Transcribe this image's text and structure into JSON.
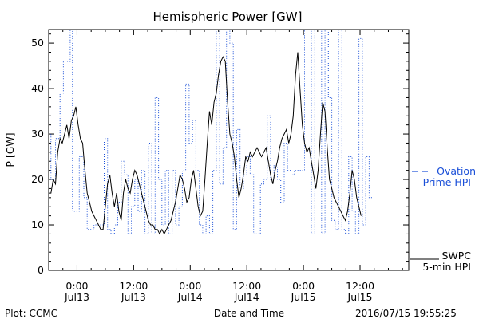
{
  "chart_data": {
    "type": "line",
    "title": "Hemispheric Power [GW]",
    "ylabel": "P [GW]",
    "xlabel": "Date and Time",
    "ylim": [
      0,
      53
    ],
    "xlim": [
      -0.25,
      2.93
    ],
    "x_unit": "days since 2016-07-13 00:00",
    "yticks": [
      0,
      10,
      20,
      30,
      40,
      50
    ],
    "xticks": [
      {
        "t": 0.0,
        "time": "0:00",
        "date": "Jul13"
      },
      {
        "t": 0.5,
        "time": "12:00",
        "date": "Jul13"
      },
      {
        "t": 1.0,
        "time": "0:00",
        "date": "Jul14"
      },
      {
        "t": 1.5,
        "time": "12:00",
        "date": "Jul14"
      },
      {
        "t": 2.0,
        "time": "0:00",
        "date": "Jul15"
      },
      {
        "t": 2.5,
        "time": "12:00",
        "date": "Jul15"
      }
    ],
    "series": [
      {
        "name": "Ovation Prime HPI",
        "color": "#1a4fd8",
        "style": "dotted-step",
        "points": [
          [
            -0.25,
            30
          ],
          [
            -0.23,
            20
          ],
          [
            -0.19,
            29
          ],
          [
            -0.15,
            39
          ],
          [
            -0.12,
            46
          ],
          [
            -0.09,
            46
          ],
          [
            -0.06,
            64
          ],
          [
            -0.04,
            13
          ],
          [
            -0.01,
            13
          ],
          [
            0.02,
            25
          ],
          [
            0.06,
            16
          ],
          [
            0.09,
            9
          ],
          [
            0.12,
            9
          ],
          [
            0.15,
            10
          ],
          [
            0.18,
            10
          ],
          [
            0.2,
            10
          ],
          [
            0.24,
            29
          ],
          [
            0.27,
            9
          ],
          [
            0.3,
            8
          ],
          [
            0.33,
            10
          ],
          [
            0.36,
            15
          ],
          [
            0.39,
            24
          ],
          [
            0.42,
            21
          ],
          [
            0.45,
            8
          ],
          [
            0.48,
            14
          ],
          [
            0.51,
            20
          ],
          [
            0.54,
            13
          ],
          [
            0.57,
            22
          ],
          [
            0.6,
            8
          ],
          [
            0.63,
            28
          ],
          [
            0.66,
            8
          ],
          [
            0.69,
            38
          ],
          [
            0.72,
            20
          ],
          [
            0.75,
            10
          ],
          [
            0.78,
            22
          ],
          [
            0.81,
            8
          ],
          [
            0.84,
            22
          ],
          [
            0.87,
            10
          ],
          [
            0.9,
            14
          ],
          [
            0.93,
            22
          ],
          [
            0.96,
            41
          ],
          [
            0.99,
            28
          ],
          [
            1.02,
            33
          ],
          [
            1.05,
            22
          ],
          [
            1.08,
            10
          ],
          [
            1.11,
            8
          ],
          [
            1.14,
            12
          ],
          [
            1.17,
            8
          ],
          [
            1.2,
            22
          ],
          [
            1.23,
            64
          ],
          [
            1.26,
            19
          ],
          [
            1.29,
            27
          ],
          [
            1.32,
            64
          ],
          [
            1.35,
            50
          ],
          [
            1.38,
            9
          ],
          [
            1.41,
            31
          ],
          [
            1.44,
            18
          ],
          [
            1.47,
            21
          ],
          [
            1.5,
            25
          ],
          [
            1.53,
            21
          ],
          [
            1.56,
            8
          ],
          [
            1.59,
            8
          ],
          [
            1.62,
            19
          ],
          [
            1.65,
            20
          ],
          [
            1.68,
            34
          ],
          [
            1.71,
            20
          ],
          [
            1.74,
            23
          ],
          [
            1.77,
            20
          ],
          [
            1.8,
            15
          ],
          [
            1.83,
            28
          ],
          [
            1.86,
            22
          ],
          [
            1.89,
            21
          ],
          [
            1.92,
            22
          ],
          [
            1.95,
            22
          ],
          [
            1.98,
            22
          ],
          [
            2.01,
            64
          ],
          [
            2.04,
            64
          ],
          [
            2.07,
            8
          ],
          [
            2.1,
            64
          ],
          [
            2.13,
            64
          ],
          [
            2.16,
            8
          ],
          [
            2.19,
            64
          ],
          [
            2.22,
            38
          ],
          [
            2.25,
            11
          ],
          [
            2.28,
            9
          ],
          [
            2.31,
            64
          ],
          [
            2.34,
            9
          ],
          [
            2.37,
            8
          ],
          [
            2.4,
            25
          ],
          [
            2.43,
            13
          ],
          [
            2.46,
            8
          ],
          [
            2.49,
            51
          ],
          [
            2.52,
            10
          ],
          [
            2.55,
            25
          ],
          [
            2.58,
            16
          ]
        ]
      },
      {
        "name": "SWPC 5-min HPI",
        "color": "#000000",
        "style": "solid",
        "points": [
          [
            -0.25,
            17
          ],
          [
            -0.23,
            17
          ],
          [
            -0.21,
            20
          ],
          [
            -0.19,
            19
          ],
          [
            -0.17,
            26
          ],
          [
            -0.15,
            29
          ],
          [
            -0.13,
            28
          ],
          [
            -0.11,
            30
          ],
          [
            -0.09,
            32
          ],
          [
            -0.07,
            29
          ],
          [
            -0.05,
            33
          ],
          [
            -0.03,
            34
          ],
          [
            -0.01,
            36
          ],
          [
            0.01,
            32
          ],
          [
            0.03,
            29
          ],
          [
            0.05,
            28
          ],
          [
            0.07,
            22
          ],
          [
            0.09,
            17
          ],
          [
            0.11,
            15
          ],
          [
            0.13,
            13
          ],
          [
            0.15,
            12
          ],
          [
            0.17,
            11
          ],
          [
            0.19,
            10
          ],
          [
            0.21,
            9
          ],
          [
            0.23,
            9
          ],
          [
            0.25,
            14
          ],
          [
            0.27,
            19
          ],
          [
            0.29,
            21
          ],
          [
            0.31,
            17
          ],
          [
            0.33,
            14
          ],
          [
            0.35,
            17
          ],
          [
            0.37,
            13
          ],
          [
            0.39,
            11
          ],
          [
            0.41,
            17
          ],
          [
            0.43,
            20
          ],
          [
            0.45,
            18
          ],
          [
            0.47,
            17
          ],
          [
            0.49,
            20
          ],
          [
            0.51,
            22
          ],
          [
            0.53,
            21
          ],
          [
            0.55,
            19
          ],
          [
            0.57,
            17
          ],
          [
            0.59,
            15
          ],
          [
            0.61,
            13
          ],
          [
            0.63,
            11
          ],
          [
            0.65,
            10
          ],
          [
            0.67,
            10
          ],
          [
            0.69,
            9
          ],
          [
            0.71,
            9
          ],
          [
            0.73,
            8
          ],
          [
            0.75,
            9
          ],
          [
            0.77,
            8
          ],
          [
            0.79,
            9
          ],
          [
            0.81,
            10
          ],
          [
            0.83,
            11
          ],
          [
            0.85,
            13
          ],
          [
            0.87,
            15
          ],
          [
            0.89,
            18
          ],
          [
            0.91,
            21
          ],
          [
            0.93,
            20
          ],
          [
            0.95,
            18
          ],
          [
            0.97,
            15
          ],
          [
            0.99,
            16
          ],
          [
            1.01,
            20
          ],
          [
            1.03,
            22
          ],
          [
            1.05,
            18
          ],
          [
            1.07,
            14
          ],
          [
            1.09,
            12
          ],
          [
            1.11,
            13
          ],
          [
            1.13,
            20
          ],
          [
            1.15,
            28
          ],
          [
            1.17,
            35
          ],
          [
            1.19,
            32
          ],
          [
            1.21,
            37
          ],
          [
            1.23,
            39
          ],
          [
            1.25,
            43
          ],
          [
            1.27,
            46
          ],
          [
            1.29,
            47
          ],
          [
            1.31,
            46
          ],
          [
            1.33,
            37
          ],
          [
            1.35,
            30
          ],
          [
            1.37,
            28
          ],
          [
            1.39,
            25
          ],
          [
            1.41,
            20
          ],
          [
            1.43,
            16
          ],
          [
            1.45,
            18
          ],
          [
            1.47,
            21
          ],
          [
            1.49,
            25
          ],
          [
            1.51,
            24
          ],
          [
            1.53,
            26
          ],
          [
            1.55,
            25
          ],
          [
            1.57,
            26
          ],
          [
            1.59,
            27
          ],
          [
            1.61,
            26
          ],
          [
            1.63,
            25
          ],
          [
            1.65,
            26
          ],
          [
            1.67,
            27
          ],
          [
            1.69,
            24
          ],
          [
            1.71,
            21
          ],
          [
            1.73,
            19
          ],
          [
            1.75,
            22
          ],
          [
            1.77,
            24
          ],
          [
            1.79,
            27
          ],
          [
            1.81,
            29
          ],
          [
            1.83,
            30
          ],
          [
            1.85,
            31
          ],
          [
            1.87,
            28
          ],
          [
            1.89,
            30
          ],
          [
            1.91,
            34
          ],
          [
            1.93,
            43
          ],
          [
            1.95,
            48
          ],
          [
            1.97,
            40
          ],
          [
            1.99,
            32
          ],
          [
            2.01,
            28
          ],
          [
            2.03,
            26
          ],
          [
            2.05,
            27
          ],
          [
            2.07,
            24
          ],
          [
            2.09,
            21
          ],
          [
            2.11,
            18
          ],
          [
            2.13,
            22
          ],
          [
            2.15,
            30
          ],
          [
            2.17,
            37
          ],
          [
            2.19,
            35
          ],
          [
            2.21,
            27
          ],
          [
            2.23,
            20
          ],
          [
            2.25,
            18
          ],
          [
            2.27,
            16
          ],
          [
            2.29,
            15
          ],
          [
            2.31,
            14
          ],
          [
            2.33,
            13
          ],
          [
            2.35,
            12
          ],
          [
            2.37,
            11
          ],
          [
            2.39,
            13
          ],
          [
            2.41,
            17
          ],
          [
            2.43,
            22
          ],
          [
            2.45,
            20
          ],
          [
            2.47,
            16
          ],
          [
            2.49,
            14
          ],
          [
            2.51,
            12
          ]
        ]
      }
    ],
    "legend": [
      {
        "series": "Ovation Prime HPI",
        "lines": [
          "Ovation",
          "Prime HPI"
        ],
        "placement": "right-middle"
      },
      {
        "series": "SWPC 5-min HPI",
        "lines": [
          "SWPC",
          "5-min HPI"
        ],
        "placement": "right-bottom"
      }
    ]
  },
  "footer": {
    "plot_credit": "Plot: CCMC",
    "timestamp": "2016/07/15 19:55:25"
  }
}
